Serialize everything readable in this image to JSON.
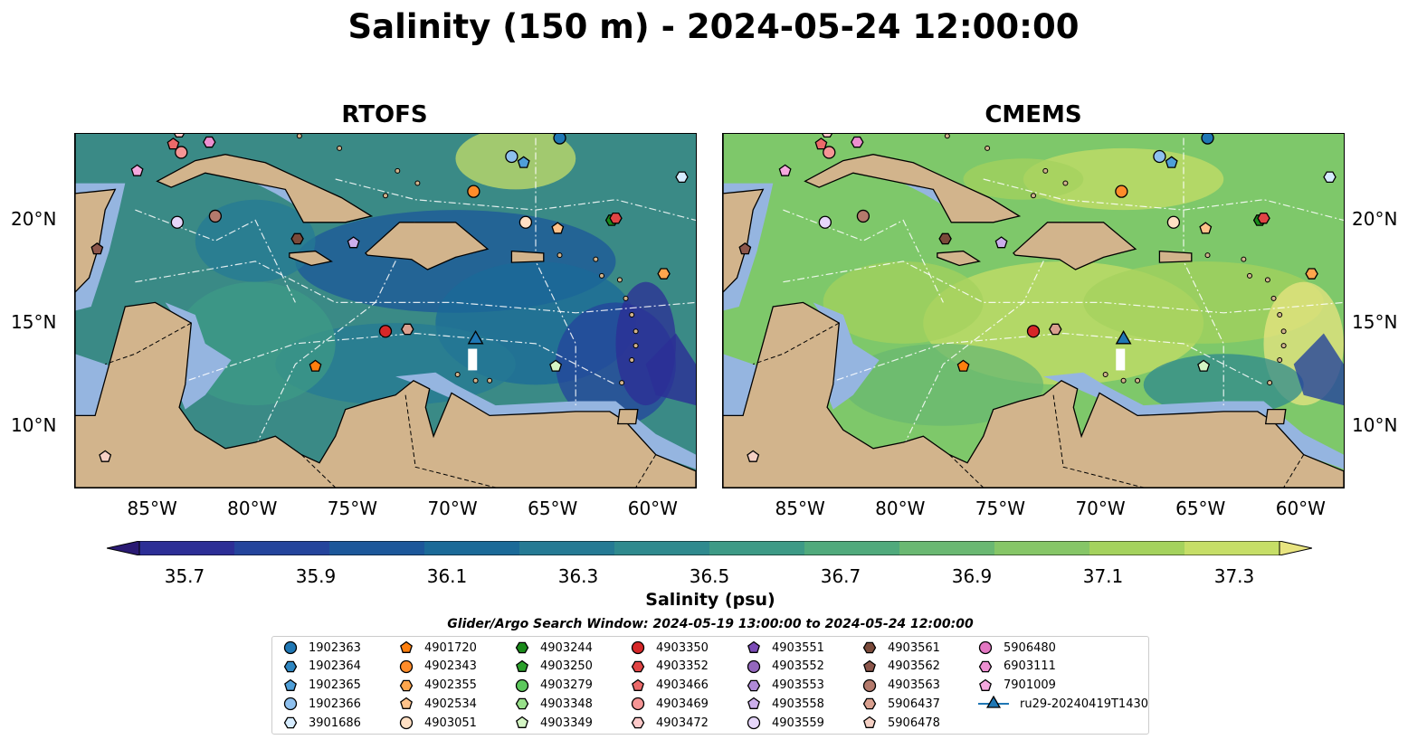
{
  "title": "Salinity (150 m) - 2024-05-24 12:00:00",
  "panels": [
    {
      "title": "RTOFS",
      "tone": "rtofs"
    },
    {
      "title": "CMEMS",
      "tone": "cmems"
    }
  ],
  "map_extent": {
    "lon": [
      -89,
      -58
    ],
    "lat": [
      7,
      24.2
    ]
  },
  "lon_ticks": [
    "85°W",
    "80°W",
    "75°W",
    "70°W",
    "65°W",
    "60°W"
  ],
  "lon_tick_values": [
    -85,
    -80,
    -75,
    -70,
    -65,
    -60
  ],
  "lat_ticks": [
    "20°N",
    "15°N",
    "10°N"
  ],
  "lat_tick_values": [
    20,
    15,
    10
  ],
  "colors": {
    "land": "#d2b48c",
    "shelf": "#95b5e0",
    "ocean_rtofs": "#3a8a86",
    "ocean_cmems": "#7ec86a"
  },
  "chart_data": {
    "type": "heatmap",
    "colorbar": {
      "label": "Salinity (psu)",
      "min": 35.7,
      "max": 37.3,
      "ticks": [
        "35.7",
        "35.9",
        "36.1",
        "36.3",
        "36.5",
        "36.7",
        "36.9",
        "37.1",
        "37.3"
      ],
      "tick_values": [
        35.7,
        35.9,
        36.1,
        36.3,
        36.5,
        36.7,
        36.9,
        37.1,
        37.3
      ],
      "colors": [
        "#2a1a73",
        "#2c2e96",
        "#24449c",
        "#1c579a",
        "#1b6a98",
        "#257a94",
        "#2f8a8e",
        "#3d9a86",
        "#50aa7c",
        "#6ab872",
        "#86c667",
        "#a4d25d",
        "#c6de67",
        "#e8e480"
      ]
    },
    "legend_title": "Glider/Argo Search Window: 2024-05-19 13:00:00 to 2024-05-24 12:00:00",
    "floats": [
      {
        "id": "1902363",
        "marker": "circle",
        "color": "#1f77b4"
      },
      {
        "id": "1902364",
        "marker": "hexagon",
        "color": "#2e86c1"
      },
      {
        "id": "1902365",
        "marker": "pentagon",
        "color": "#4f9fd8"
      },
      {
        "id": "1902366",
        "marker": "circle",
        "color": "#8ec0ee"
      },
      {
        "id": "3901686",
        "marker": "hexagon",
        "color": "#d6ecff"
      },
      {
        "id": "4901720",
        "marker": "pentagon",
        "color": "#ff7f0e"
      },
      {
        "id": "4902343",
        "marker": "circle",
        "color": "#ff8c2a"
      },
      {
        "id": "4902355",
        "marker": "hexagon",
        "color": "#ffa64d"
      },
      {
        "id": "4902534",
        "marker": "pentagon",
        "color": "#ffc28a"
      },
      {
        "id": "4903051",
        "marker": "circle",
        "color": "#ffe0c4"
      },
      {
        "id": "4903244",
        "marker": "hexagon",
        "color": "#1a8a1a"
      },
      {
        "id": "4903250",
        "marker": "pentagon",
        "color": "#2ca02c"
      },
      {
        "id": "4903279",
        "marker": "circle",
        "color": "#5cc85c"
      },
      {
        "id": "4903348",
        "marker": "hexagon",
        "color": "#98e08a"
      },
      {
        "id": "4903349",
        "marker": "pentagon",
        "color": "#d4f5c4"
      },
      {
        "id": "4903350",
        "marker": "circle",
        "color": "#d62728"
      },
      {
        "id": "4903352",
        "marker": "hexagon",
        "color": "#e04545"
      },
      {
        "id": "4903466",
        "marker": "pentagon",
        "color": "#ec6a6a"
      },
      {
        "id": "4903469",
        "marker": "circle",
        "color": "#f59595"
      },
      {
        "id": "4903472",
        "marker": "hexagon",
        "color": "#ffcaca"
      },
      {
        "id": "4903551",
        "marker": "pentagon",
        "color": "#7b4bb6"
      },
      {
        "id": "4903552",
        "marker": "circle",
        "color": "#9467bd"
      },
      {
        "id": "4903553",
        "marker": "hexagon",
        "color": "#b08ad8"
      },
      {
        "id": "4903558",
        "marker": "pentagon",
        "color": "#cbaeeb"
      },
      {
        "id": "4903559",
        "marker": "circle",
        "color": "#e6d6fa"
      },
      {
        "id": "4903561",
        "marker": "hexagon",
        "color": "#7a4a3a"
      },
      {
        "id": "4903562",
        "marker": "pentagon",
        "color": "#8c564b"
      },
      {
        "id": "4903563",
        "marker": "circle",
        "color": "#b47a6c"
      },
      {
        "id": "5906437",
        "marker": "hexagon",
        "color": "#d9a08f"
      },
      {
        "id": "5906478",
        "marker": "pentagon",
        "color": "#f5d0c4"
      },
      {
        "id": "5906480",
        "marker": "circle",
        "color": "#e377c2"
      },
      {
        "id": "6903111",
        "marker": "hexagon",
        "color": "#ec8fd0"
      },
      {
        "id": "7901009",
        "marker": "pentagon",
        "color": "#f5a8de"
      },
      {
        "id": "ru29-20240419T1430",
        "marker": "triangle",
        "color": "#1f77b4"
      }
    ],
    "positions": [
      {
        "id": "1902363",
        "lon": -64.8,
        "lat": 24.0
      },
      {
        "id": "1902365",
        "lon": -66.6,
        "lat": 22.8
      },
      {
        "id": "1902366",
        "lon": -67.2,
        "lat": 23.1
      },
      {
        "id": "3901686",
        "lon": -58.7,
        "lat": 22.1
      },
      {
        "id": "4901720",
        "lon": -77.0,
        "lat": 12.9
      },
      {
        "id": "4902343",
        "lon": -69.1,
        "lat": 21.4
      },
      {
        "id": "4902355",
        "lon": -59.6,
        "lat": 17.4
      },
      {
        "id": "4902534",
        "lon": -64.9,
        "lat": 19.6
      },
      {
        "id": "4903051",
        "lon": -66.5,
        "lat": 19.9
      },
      {
        "id": "4903244",
        "lon": -62.2,
        "lat": 20.0
      },
      {
        "id": "4903349",
        "lon": -65.0,
        "lat": 12.9
      },
      {
        "id": "4903350",
        "lon": -73.5,
        "lat": 14.6
      },
      {
        "id": "4903352",
        "lon": -62.0,
        "lat": 20.1
      },
      {
        "id": "4903466",
        "lon": -84.1,
        "lat": 23.7
      },
      {
        "id": "4903469",
        "lon": -83.7,
        "lat": 23.3
      },
      {
        "id": "4903472",
        "lon": -83.8,
        "lat": 24.3
      },
      {
        "id": "4903558",
        "lon": -75.1,
        "lat": 18.9
      },
      {
        "id": "4903559",
        "lon": -83.9,
        "lat": 19.9
      },
      {
        "id": "4903561",
        "lon": -77.9,
        "lat": 19.1
      },
      {
        "id": "4903562",
        "lon": -87.9,
        "lat": 18.6
      },
      {
        "id": "4903563",
        "lon": -82.0,
        "lat": 20.2
      },
      {
        "id": "5906437",
        "lon": -72.4,
        "lat": 14.7
      },
      {
        "id": "5906478",
        "lon": -87.5,
        "lat": 8.5
      },
      {
        "id": "6903111",
        "lon": -82.3,
        "lat": 23.8
      },
      {
        "id": "7901009",
        "lon": -85.9,
        "lat": 22.4
      },
      {
        "id": "ru29-20240419T1430",
        "lon": -69.0,
        "lat": 14.2
      }
    ]
  }
}
